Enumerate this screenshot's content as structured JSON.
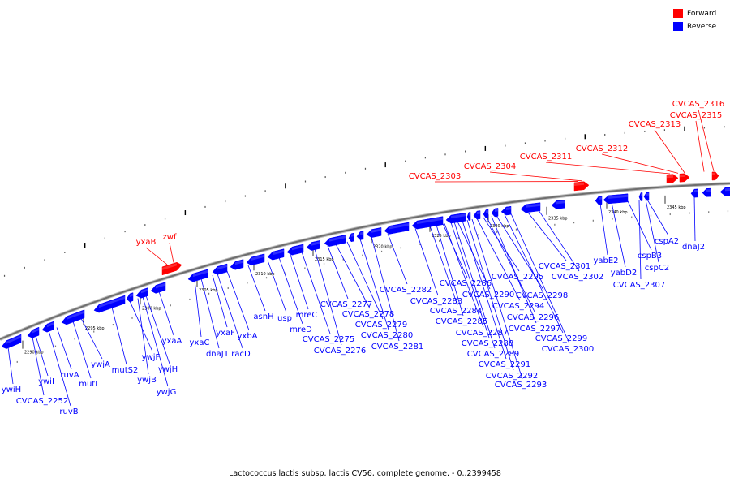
{
  "legend": {
    "items": [
      {
        "label": "Forward",
        "color": "#ff0000"
      },
      {
        "label": "Reverse",
        "color": "#0000ff"
      }
    ]
  },
  "caption": "Lactococcus lactis subsp. lactis CV56, complete genome. - 0..2399458",
  "tick_labels": [
    "2290 kbp",
    "2295 kbp",
    "2300 kbp",
    "2305 kbp",
    "2310 kbp",
    "2315 kbp",
    "2320 kbp",
    "2325 kbp",
    "2330 kbp",
    "2335 kbp",
    "2340 kbp",
    "2345 kbp"
  ],
  "forward_genes": [
    "yxaB",
    "zwf",
    "CVCAS_2303",
    "CVCAS_2304",
    "CVCAS_2311",
    "CVCAS_2312",
    "CVCAS_2313",
    "CVCAS_2316",
    "CVCAS_2315"
  ],
  "reverse_genes": [
    "ywiH",
    "CVCAS_2252",
    "ywiI",
    "ruvB",
    "ruvA",
    "mutL",
    "ywjA",
    "mutS2",
    "ywjF",
    "ywjB",
    "ywjH",
    "ywjG",
    "yxaA",
    "yxaC",
    "dnaJ1",
    "yxaF",
    "racD",
    "yxbA",
    "asnH",
    "usp",
    "mreD",
    "mreC",
    "CVCAS_2275",
    "CVCAS_2276",
    "CVCAS_2277",
    "CVCAS_2278",
    "CVCAS_2279",
    "CVCAS_2280",
    "CVCAS_2281",
    "CVCAS_2282",
    "CVCAS_2283",
    "CVCAS_2284",
    "CVCAS_2285",
    "CVCAS_2286",
    "CVCAS_2287",
    "CVCAS_2288",
    "CVCAS_2289",
    "CVCAS_2290",
    "CVCAS_2291",
    "CVCAS_2292",
    "CVCAS_2293",
    "CVCAS_2294",
    "CVCAS_2295",
    "CVCAS_2296",
    "CVCAS_2297",
    "CVCAS_2298",
    "CVCAS_2299",
    "CVCAS_2300",
    "CVCAS_2301",
    "CVCAS_2302",
    "yabE2",
    "yabD2",
    "cspB3",
    "cspC2",
    "cspA2",
    "CVCAS_2307",
    "dnaJ2"
  ]
}
